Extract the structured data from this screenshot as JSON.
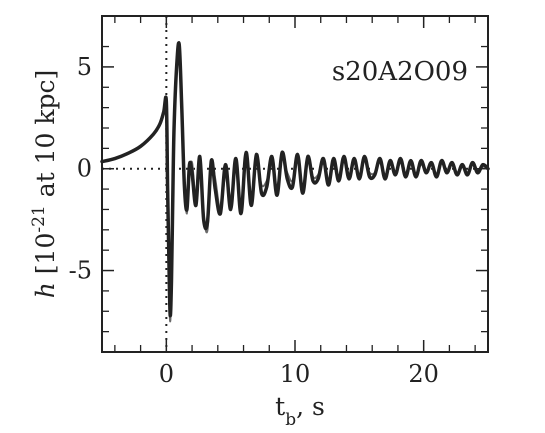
{
  "chart_data": {
    "type": "line",
    "title": "",
    "annotation": "s20A2O09",
    "xlabel": {
      "main": "t",
      "sub": "b",
      "rest": ", s"
    },
    "ylabel": {
      "italic": "h",
      "pre": " [10",
      "sup": "-21",
      "post": " at 10 kpc]"
    },
    "xlim": [
      -5,
      25
    ],
    "ylim": [
      -9,
      7.5
    ],
    "xticks": [
      0,
      10,
      20
    ],
    "xtick_labels": [
      "0",
      "10",
      "20"
    ],
    "xminor": [
      -4,
      -2,
      2,
      4,
      6,
      8,
      12,
      14,
      16,
      18,
      22,
      24
    ],
    "yticks": [
      5,
      0,
      -5
    ],
    "ytick_labels": [
      "5",
      "0",
      "-5"
    ],
    "yminor": [
      6,
      4,
      3,
      2,
      1,
      -1,
      -2,
      -3,
      -4,
      -6,
      -7,
      -8
    ],
    "reference_lines": {
      "y0_dotted": true,
      "x0_dotted": true
    },
    "grid": false,
    "series": [
      {
        "color": "#6a6a6a",
        "width": 2,
        "x": [
          -5,
          -4,
          -3,
          -2,
          -1,
          -0.5,
          -0.2,
          0,
          0.1,
          0.2,
          0.3,
          0.4,
          0.5,
          0.6,
          0.8,
          1.0,
          1.2,
          1.4,
          1.6,
          1.8,
          2.0,
          2.3,
          2.6,
          2.9,
          3.2,
          3.5,
          3.8,
          4.2,
          4.6,
          5.0,
          5.4,
          5.8,
          6.2,
          6.6,
          7.0,
          7.4,
          7.8,
          8.2,
          8.6,
          9.0,
          9.4,
          9.8,
          10.2,
          10.6,
          11.0,
          11.4,
          11.8,
          12.2,
          12.6,
          13.0,
          13.4,
          13.8,
          14.2,
          14.6,
          15.0,
          15.4,
          15.8,
          16.2,
          16.6,
          17.0,
          17.4,
          17.8,
          18.2,
          18.6,
          19.0,
          19.4,
          19.8,
          20.2,
          20.6,
          21.0,
          21.4,
          21.8,
          22.2,
          22.6,
          23.0,
          23.4,
          23.8,
          24.2,
          24.6,
          25
        ],
        "y": [
          0.35,
          0.5,
          0.75,
          1.1,
          1.7,
          2.2,
          2.8,
          3.2,
          -1.5,
          -5.0,
          -7.5,
          -5.0,
          -1.0,
          2.5,
          5.2,
          5.9,
          3.5,
          -0.5,
          -2.2,
          -0.3,
          0.3,
          -1.5,
          0.4,
          -2.2,
          -3.0,
          0.2,
          -0.5,
          -2.0,
          -0.3,
          -1.5,
          0.3,
          -1.8,
          0.6,
          -1.5,
          0.4,
          -0.8,
          -0.6,
          0.2,
          -0.9,
          0.5,
          -0.2,
          -0.6,
          0.4,
          -0.9,
          0.5,
          -0.4,
          -0.3,
          0.3,
          -0.6,
          0.2,
          -0.4,
          0.4,
          -0.3,
          0.3,
          -0.4,
          0.4,
          -0.2,
          -0.2,
          0.3,
          -0.3,
          0.2,
          -0.2,
          0.3,
          -0.2,
          0.3,
          -0.3,
          0.2,
          -0.1,
          0.2,
          -0.3,
          0.3,
          -0.1,
          0.2,
          -0.2,
          0.1,
          -0.2,
          0.2,
          -0.1,
          0.1,
          0.0
        ]
      },
      {
        "color": "#222222",
        "width": 3.5,
        "x": [
          -5,
          -4,
          -3,
          -2,
          -1,
          -0.5,
          -0.2,
          0,
          0.1,
          0.2,
          0.3,
          0.4,
          0.5,
          0.6,
          0.8,
          1.0,
          1.2,
          1.4,
          1.6,
          1.8,
          2.0,
          2.3,
          2.6,
          2.9,
          3.2,
          3.5,
          3.8,
          4.2,
          4.6,
          5.0,
          5.4,
          5.8,
          6.2,
          6.6,
          7.0,
          7.4,
          7.8,
          8.2,
          8.6,
          9.0,
          9.4,
          9.8,
          10.2,
          10.6,
          11.0,
          11.4,
          11.8,
          12.2,
          12.6,
          13.0,
          13.4,
          13.8,
          14.2,
          14.6,
          15.0,
          15.4,
          15.8,
          16.2,
          16.6,
          17.0,
          17.4,
          17.8,
          18.2,
          18.6,
          19.0,
          19.4,
          19.8,
          20.2,
          20.6,
          21.0,
          21.4,
          21.8,
          22.2,
          22.6,
          23.0,
          23.4,
          23.8,
          24.2,
          24.6,
          25
        ],
        "y": [
          0.35,
          0.5,
          0.75,
          1.1,
          1.7,
          2.2,
          2.8,
          3.3,
          -1.0,
          -4.5,
          -7.2,
          -5.5,
          -1.5,
          2.0,
          5.0,
          6.1,
          3.0,
          -0.8,
          -2.0,
          0.2,
          -0.2,
          -1.8,
          0.6,
          -2.5,
          -2.6,
          0.4,
          -1.0,
          -2.2,
          0.2,
          -2.0,
          0.5,
          -2.2,
          0.8,
          -1.8,
          0.7,
          -1.2,
          -0.9,
          0.6,
          -1.3,
          0.8,
          -0.5,
          -0.9,
          0.7,
          -1.2,
          0.6,
          -0.6,
          -0.5,
          0.5,
          -0.8,
          0.5,
          -0.6,
          0.6,
          -0.5,
          0.5,
          -0.5,
          0.6,
          -0.4,
          -0.3,
          0.5,
          -0.5,
          0.4,
          -0.3,
          0.5,
          -0.4,
          0.4,
          -0.4,
          0.4,
          -0.2,
          0.3,
          -0.4,
          0.4,
          -0.2,
          0.3,
          -0.3,
          0.2,
          -0.3,
          0.3,
          -0.2,
          0.2,
          0.0
        ]
      }
    ]
  }
}
